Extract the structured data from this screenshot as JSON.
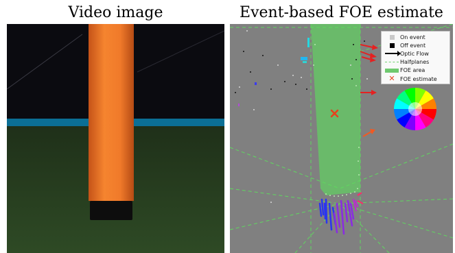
{
  "titles": {
    "left": "Video image",
    "right": "Event-based FOE estimate"
  },
  "legend": {
    "on_event": "On event",
    "off_event": "Off event",
    "optic_flow": "Optic Flow",
    "halfplanes": "Halfplanes",
    "foe_area": "FOE area",
    "foe_estimate": "FOE estimate"
  },
  "colors": {
    "event_background": "#808080",
    "foe_area": "#6aba6a",
    "halfplane_line": "#5fd85f",
    "foe_marker": "#e8401c",
    "pole": "#f07a2a",
    "floor": "#263d1f",
    "wall": "#0b0b10",
    "blue_stripe": "#0b6f95"
  },
  "icons": {
    "color_wheel": "flow-direction-color-wheel-icon"
  }
}
